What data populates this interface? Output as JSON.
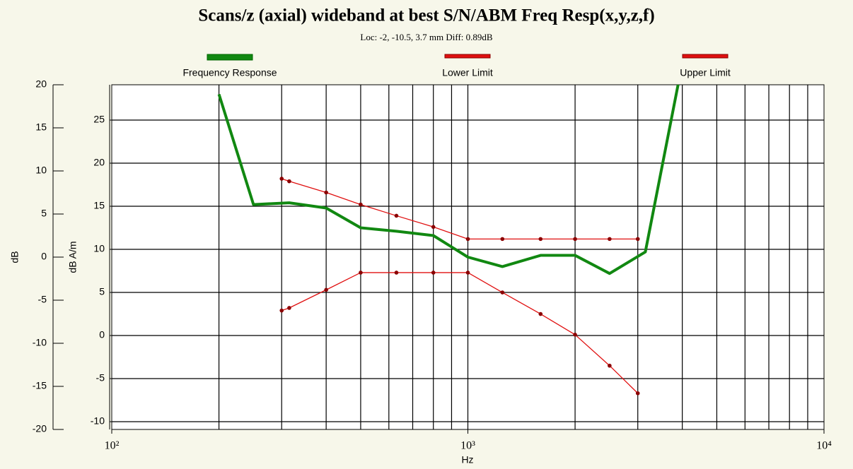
{
  "chart_data": {
    "type": "line",
    "title": "Scans/z (axial) wideband at best S/N/ABM Freq Resp(x,y,z,f)",
    "subtitle": "Loc: -2, -10.5, 3.7 mm Diff: 0.89dB",
    "xlabel": "Hz",
    "ylabel": "dB",
    "y2label": "dB A/m",
    "xscale": "log",
    "xlim": [
      100,
      10000
    ],
    "xticks": [
      {
        "value": 100,
        "label": "10²"
      },
      {
        "value": 1000,
        "label": "10³"
      },
      {
        "value": 10000,
        "label": "10⁴"
      }
    ],
    "xgrid": [
      200,
      300,
      400,
      500,
      600,
      700,
      800,
      900,
      1000,
      2000,
      3000,
      4000,
      5000,
      6000,
      7000,
      8000,
      9000
    ],
    "ylim": [
      -20,
      20
    ],
    "yticks": [
      20,
      15,
      10,
      5,
      0,
      -5,
      -10,
      -15,
      -20
    ],
    "y2lim": [
      -10.9,
      29.1
    ],
    "y2ticks": [
      25,
      20,
      15,
      10,
      5,
      0,
      -5,
      -10
    ],
    "grid": true,
    "legend": "top",
    "series": [
      {
        "name": "Frequency Response",
        "color": "#118811",
        "axis": "y2",
        "markers": false,
        "x": [
          200,
          250,
          315,
          400,
          500,
          630,
          800,
          1000,
          1250,
          1600,
          2000,
          2500,
          3150,
          4000
        ],
        "values": [
          28,
          15.2,
          15.4,
          14.8,
          12.5,
          12.1,
          11.6,
          9.1,
          8.0,
          9.3,
          9.3,
          7.2,
          9.7,
          31.6
        ]
      },
      {
        "name": "Lower Limit",
        "color": "#e01010",
        "axis": "y2",
        "markers": true,
        "x": [
          300,
          315,
          400,
          500,
          630,
          800,
          1000,
          1250,
          1600,
          2000,
          2500,
          3000
        ],
        "values": [
          2.9,
          3.2,
          5.3,
          7.3,
          7.3,
          7.3,
          7.3,
          5.0,
          2.5,
          0.1,
          -3.5,
          -6.7
        ]
      },
      {
        "name": "Upper Limit",
        "color": "#e01010",
        "axis": "y2",
        "markers": true,
        "x": [
          300,
          315,
          400,
          500,
          630,
          800,
          1000,
          1250,
          1600,
          2000,
          2500,
          3000
        ],
        "values": [
          18.2,
          17.9,
          16.6,
          15.2,
          13.9,
          12.6,
          11.2,
          11.2,
          11.2,
          11.2,
          11.2,
          11.2
        ]
      }
    ]
  }
}
